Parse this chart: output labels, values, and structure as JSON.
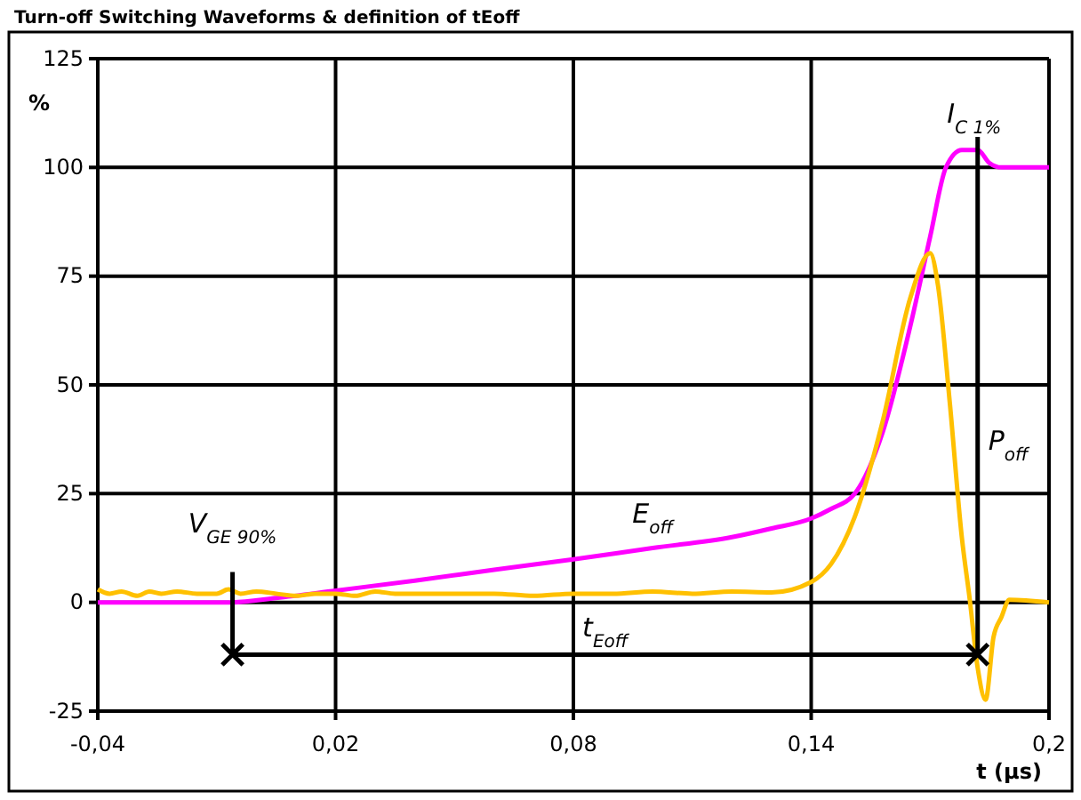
{
  "chart_data": {
    "type": "line",
    "title": "Turn-off Switching Waveforms & definition of tEoff",
    "xlabel": "t (µs)",
    "ylabel": "%",
    "xlim": [
      -0.04,
      0.2
    ],
    "ylim": [
      -25,
      125
    ],
    "xticks": [
      {
        "value": -0.04,
        "label": "-0,04"
      },
      {
        "value": 0.02,
        "label": "0,02"
      },
      {
        "value": 0.08,
        "label": "0,08"
      },
      {
        "value": 0.14,
        "label": "0,14"
      },
      {
        "value": 0.2,
        "label": "0,2"
      }
    ],
    "yticks": [
      -25,
      0,
      25,
      50,
      75,
      100,
      125
    ],
    "grid": true,
    "line_style": "solid",
    "marker": "none",
    "series": [
      {
        "color": "#ff00ff",
        "x": [
          -0.04,
          -0.02,
          -0.006,
          0.005,
          0.02,
          0.04,
          0.06,
          0.08,
          0.1,
          0.12,
          0.13,
          0.14,
          0.145,
          0.151,
          0.158,
          0.165,
          0.17,
          0.174,
          0.178,
          0.182,
          0.185,
          0.188,
          0.192,
          0.2
        ],
        "values": [
          0,
          0,
          0,
          1,
          2.7,
          5,
          7.5,
          9.9,
          12.5,
          15,
          17,
          19.3,
          21.5,
          25,
          39,
          63.5,
          84,
          100,
          104,
          104,
          101,
          100,
          100,
          100
        ]
      },
      {
        "color": "#ffc000",
        "x": [
          -0.04,
          -0.037,
          -0.034,
          -0.03,
          -0.027,
          -0.024,
          -0.02,
          -0.015,
          -0.01,
          -0.007,
          -0.004,
          0,
          0.005,
          0.01,
          0.015,
          0.02,
          0.025,
          0.03,
          0.035,
          0.04,
          0.05,
          0.06,
          0.07,
          0.08,
          0.09,
          0.1,
          0.11,
          0.12,
          0.13,
          0.14,
          0.145,
          0.151,
          0.158,
          0.165,
          0.17,
          0.172,
          0.175,
          0.178,
          0.18,
          0.182,
          0.184,
          0.186,
          0.188,
          0.19,
          0.2
        ],
        "values": [
          3,
          2,
          2.5,
          1.5,
          2.5,
          2,
          2.5,
          2,
          2,
          3,
          2,
          2.5,
          2,
          1.5,
          2,
          2,
          1.5,
          2.5,
          2,
          2,
          2,
          2,
          1.5,
          2,
          2,
          2.5,
          2,
          2.5,
          2.3,
          4.7,
          8.8,
          19.7,
          41.5,
          70,
          80.3,
          72.8,
          45.6,
          15,
          0.7,
          -15,
          -22.4,
          -8,
          -3.4,
          0.6,
          0
        ]
      },
      {
        "color": "#000000",
        "x": [
          -0.006,
          -0.006,
          0.182,
          0.182
        ],
        "values": [
          7,
          -12,
          -12,
          107
        ]
      },
      {
        "type": "scatter",
        "marker": "cross",
        "color": "#000000",
        "x": [
          -0.006,
          0.182
        ],
        "values": [
          -12,
          -12
        ]
      }
    ],
    "annotations": [
      {
        "text": "I$_{C 1%}$",
        "x": 0.182,
        "y": 107
      },
      {
        "text": "P$_{off}$",
        "x": 0.182,
        "y": 35
      },
      {
        "text": "E$_{off}$",
        "x": 0.1,
        "y": 15
      },
      {
        "text": "V$_{GE 90%}$",
        "x": -0.006,
        "y": 7
      },
      {
        "text": "t$_{Eoff}$",
        "x": 0.088,
        "y": -12
      }
    ]
  }
}
